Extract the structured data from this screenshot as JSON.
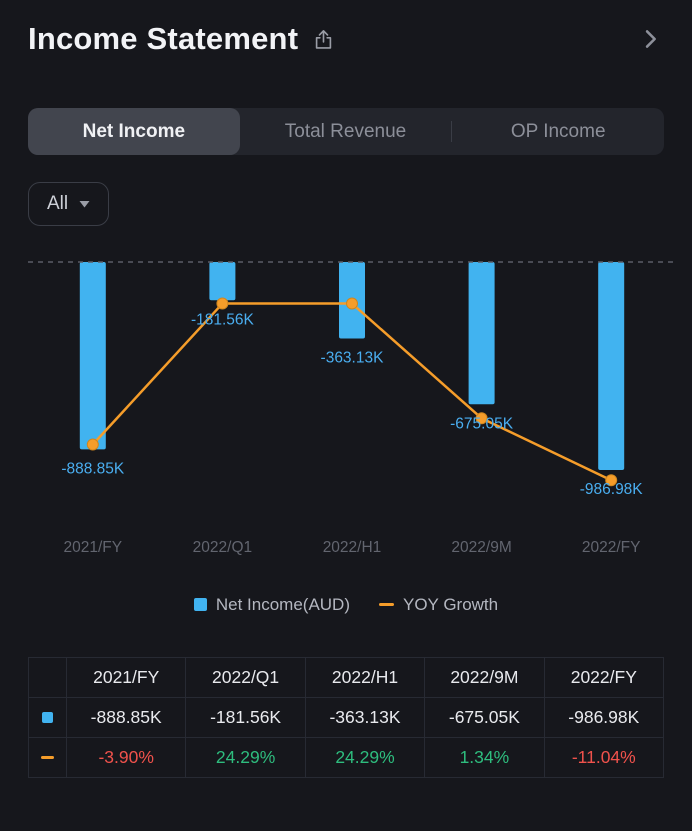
{
  "header": {
    "title": "Income Statement"
  },
  "tabs": [
    {
      "label": "Net Income",
      "active": true
    },
    {
      "label": "Total Revenue",
      "active": false
    },
    {
      "label": "OP Income",
      "active": false
    }
  ],
  "filter": {
    "label": "All"
  },
  "chart_data": {
    "type": "bar",
    "categories": [
      "2021/FY",
      "2022/Q1",
      "2022/H1",
      "2022/9M",
      "2022/FY"
    ],
    "series": [
      {
        "name": "Net Income(AUD)",
        "type": "bar",
        "color": "#41b3f0",
        "unit": "K AUD",
        "values": [
          -888.85,
          -181.56,
          -363.13,
          -675.05,
          -986.98
        ],
        "labels": [
          "-888.85K",
          "-181.56K",
          "-363.13K",
          "-675.05K",
          "-986.98K"
        ]
      },
      {
        "name": "YOY Growth",
        "type": "line",
        "color": "#f59d2a",
        "unit": "%",
        "values": [
          -3.9,
          24.29,
          24.29,
          1.34,
          -11.04
        ],
        "labels": [
          "-3.90%",
          "24.29%",
          "24.29%",
          "1.34%",
          "-11.04%"
        ]
      }
    ],
    "ylim_bar_k": [
      -1000,
      0
    ],
    "baseline": "dashed zero line at top",
    "grid": false,
    "legend_position": "bottom"
  },
  "table": {
    "columns": [
      "2021/FY",
      "2022/Q1",
      "2022/H1",
      "2022/9M",
      "2022/FY"
    ],
    "rows": [
      {
        "series": "Net Income(AUD)",
        "icon": "blue-square",
        "values": [
          "-888.85K",
          "-181.56K",
          "-363.13K",
          "-675.05K",
          "-986.98K"
        ]
      },
      {
        "series": "YOY Growth",
        "icon": "orange-dash",
        "values": [
          "-3.90%",
          "24.29%",
          "24.29%",
          "1.34%",
          "-11.04%"
        ]
      }
    ]
  },
  "colors": {
    "background": "#16171c",
    "accent_blue": "#41b3f0",
    "accent_orange": "#f59d2a",
    "positive_green": "#2ebd7e",
    "negative_red": "#f0524c",
    "value_label_blue": "#4aaef0",
    "axis_label_gray": "#62656f"
  }
}
